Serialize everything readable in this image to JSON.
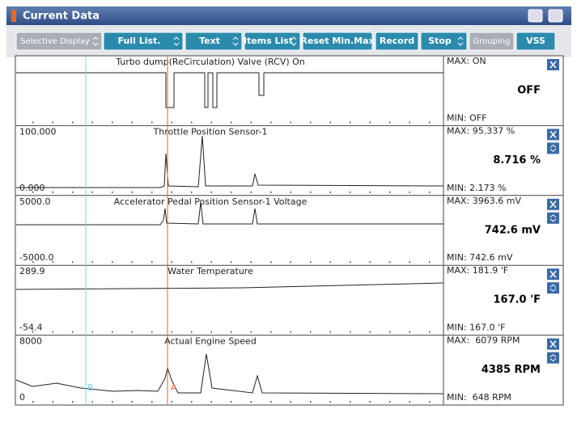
{
  "header": {
    "title": "Current Data"
  },
  "toolbar": [
    "Selective Display",
    "Full List.",
    "Text",
    "Items List",
    "Reset Min.Max",
    "Record",
    "Stop",
    "Grouping",
    "VSS"
  ],
  "panels": [
    {
      "name": "Turbo dump(ReCirculation) Valve (RCV) On",
      "max": "MAX: ON",
      "value": "OFF",
      "min": "MIN: OFF"
    },
    {
      "name": "Throttle Position Sensor-1",
      "scale_top": "100.000",
      "scale_bottom": "0.000",
      "max": "MAX: 95.337 %",
      "value": "8.716 %",
      "min": "MIN: 2.173 %"
    },
    {
      "name": "Accelerator Pedal Position Sensor-1 Voltage",
      "scale_top": "5000.0",
      "scale_bottom": "-5000.0",
      "max": "MAX: 3963.6 mV",
      "value": "742.6 mV",
      "min": "MIN: 742.6 mV"
    },
    {
      "name": "Water Temperature",
      "scale_top": "289.9",
      "scale_bottom": "-54.4",
      "max": "MAX: 181.9 'F",
      "value": "167.0 'F",
      "min": "MIN: 167.0 'F"
    },
    {
      "name": "Actual Engine Speed",
      "scale_top": "8000",
      "scale_bottom": "0",
      "max": "MAX:  6079 RPM",
      "value": "4385 RPM",
      "min": "MIN:  648 RPM"
    }
  ],
  "cursors": [
    "B",
    "A"
  ]
}
